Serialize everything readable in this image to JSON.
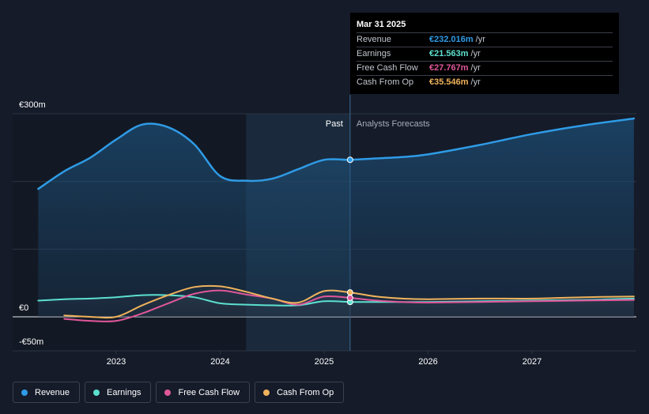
{
  "tooltip": {
    "date": "Mar 31 2025",
    "rows": [
      {
        "name": "Revenue",
        "value": "€232.016m",
        "unit": "/yr",
        "color": "#2f9be6"
      },
      {
        "name": "Earnings",
        "value": "€21.563m",
        "unit": "/yr",
        "color": "#5ce0cf"
      },
      {
        "name": "Free Cash Flow",
        "value": "€27.767m",
        "unit": "/yr",
        "color": "#e0579a"
      },
      {
        "name": "Cash From Op",
        "value": "€35.546m",
        "unit": "/yr",
        "color": "#f0b35c"
      }
    ]
  },
  "legend": [
    {
      "name": "Revenue",
      "color": "#2f9be6"
    },
    {
      "name": "Earnings",
      "color": "#5ce0cf"
    },
    {
      "name": "Free Cash Flow",
      "color": "#e0579a"
    },
    {
      "name": "Cash From Op",
      "color": "#f0b35c"
    }
  ],
  "chart_data": {
    "type": "area",
    "currency": "€",
    "ylim": [
      -50,
      300
    ],
    "y_ticks": [
      {
        "value": 300,
        "label": "€300m"
      },
      {
        "value": 0,
        "label": "€0"
      },
      {
        "value": -50,
        "label": "-€50m"
      }
    ],
    "x_ticks": [
      {
        "value": 2023,
        "label": "2023"
      },
      {
        "value": 2024,
        "label": "2024"
      },
      {
        "value": 2025,
        "label": "2025"
      },
      {
        "value": 2026,
        "label": "2026"
      },
      {
        "value": 2027,
        "label": "2027"
      }
    ],
    "xlim": [
      2022.25,
      2028.0
    ],
    "gridlines": [
      300,
      200,
      100,
      0
    ],
    "past_label": "Past",
    "forecast_label": "Analysts Forecasts",
    "past_end": 2025.25,
    "shade_start": 2024.25,
    "marker_x": 2025.25,
    "series": [
      {
        "name": "Revenue",
        "color": "#2f9be6",
        "values": [
          [
            2022.25,
            189
          ],
          [
            2022.5,
            215
          ],
          [
            2022.75,
            235
          ],
          [
            2023.0,
            262
          ],
          [
            2023.25,
            284
          ],
          [
            2023.5,
            280
          ],
          [
            2023.75,
            255
          ],
          [
            2024.0,
            208
          ],
          [
            2024.25,
            201
          ],
          [
            2024.5,
            204
          ],
          [
            2024.75,
            218
          ],
          [
            2025.0,
            232
          ],
          [
            2025.25,
            232
          ],
          [
            2025.5,
            234
          ],
          [
            2025.75,
            236
          ],
          [
            2026.0,
            240
          ],
          [
            2026.5,
            254
          ],
          [
            2027.0,
            270
          ],
          [
            2027.5,
            283
          ],
          [
            2028.0,
            293
          ]
        ]
      },
      {
        "name": "Earnings",
        "color": "#5ce0cf",
        "values": [
          [
            2022.25,
            24
          ],
          [
            2022.5,
            26
          ],
          [
            2022.75,
            27
          ],
          [
            2023.0,
            29
          ],
          [
            2023.25,
            32
          ],
          [
            2023.5,
            32
          ],
          [
            2023.75,
            29
          ],
          [
            2024.0,
            20
          ],
          [
            2024.25,
            18
          ],
          [
            2024.5,
            17
          ],
          [
            2024.75,
            17
          ],
          [
            2025.0,
            23
          ],
          [
            2025.25,
            22
          ],
          [
            2025.5,
            22
          ],
          [
            2025.75,
            22
          ],
          [
            2026.0,
            22
          ],
          [
            2026.5,
            23
          ],
          [
            2027.0,
            24
          ],
          [
            2027.5,
            25
          ],
          [
            2028.0,
            27
          ]
        ]
      },
      {
        "name": "Free Cash Flow",
        "color": "#e0579a",
        "values": [
          [
            2022.5,
            -3
          ],
          [
            2022.75,
            -6
          ],
          [
            2023.0,
            -6
          ],
          [
            2023.25,
            5
          ],
          [
            2023.5,
            20
          ],
          [
            2023.75,
            34
          ],
          [
            2024.0,
            39
          ],
          [
            2024.25,
            33
          ],
          [
            2024.5,
            27
          ],
          [
            2024.75,
            18
          ],
          [
            2025.0,
            30
          ],
          [
            2025.25,
            28
          ],
          [
            2025.5,
            24
          ],
          [
            2025.75,
            22
          ],
          [
            2026.0,
            21
          ],
          [
            2026.5,
            22
          ],
          [
            2027.0,
            23
          ],
          [
            2027.5,
            24
          ],
          [
            2028.0,
            25
          ]
        ]
      },
      {
        "name": "Cash From Op",
        "color": "#f0b35c",
        "values": [
          [
            2022.5,
            2
          ],
          [
            2022.75,
            0
          ],
          [
            2023.0,
            0
          ],
          [
            2023.25,
            17
          ],
          [
            2023.5,
            32
          ],
          [
            2023.75,
            44
          ],
          [
            2024.0,
            45
          ],
          [
            2024.25,
            37
          ],
          [
            2024.5,
            27
          ],
          [
            2024.75,
            21
          ],
          [
            2025.0,
            38
          ],
          [
            2025.25,
            36
          ],
          [
            2025.5,
            30
          ],
          [
            2025.75,
            27
          ],
          [
            2026.0,
            26
          ],
          [
            2026.5,
            27
          ],
          [
            2027.0,
            27
          ],
          [
            2027.5,
            29
          ],
          [
            2028.0,
            30
          ]
        ]
      }
    ]
  }
}
